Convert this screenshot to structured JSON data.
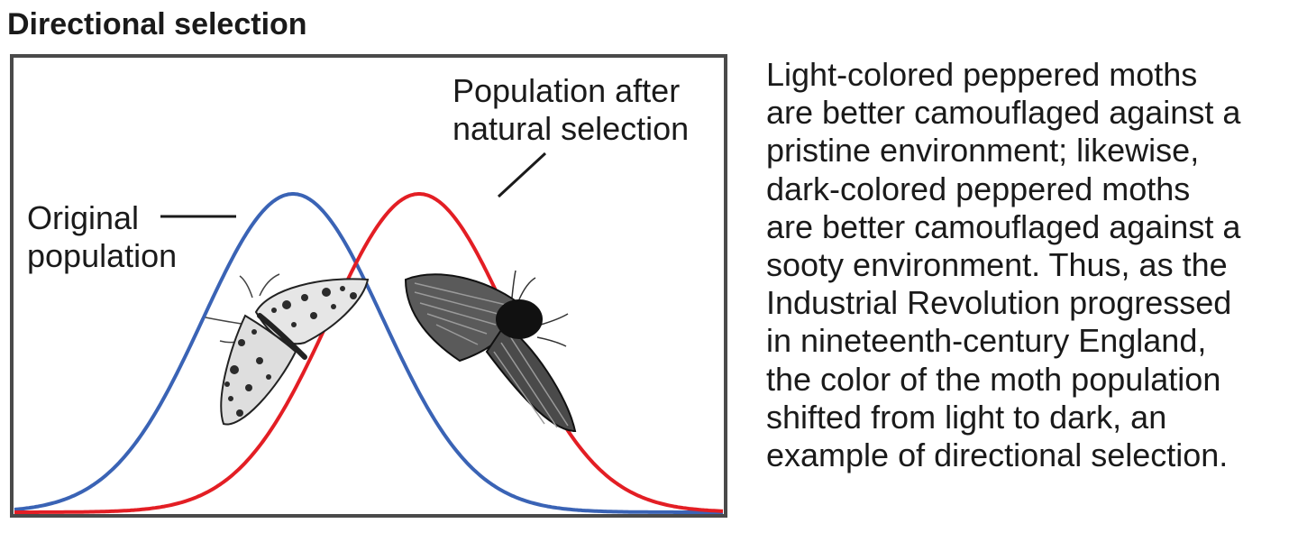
{
  "title": "Directional selection",
  "chart_data": {
    "type": "line",
    "series": [
      {
        "name": "Original population",
        "color": "#3a63b5",
        "mean": 0.0,
        "sd": 1.0
      },
      {
        "name": "Population after natural selection",
        "color": "#e31e24",
        "mean": 1.4,
        "sd": 1.0
      }
    ],
    "grid": false,
    "axes_ticks": false
  },
  "labels": {
    "original": [
      "Original",
      "population"
    ],
    "after": [
      "Population after",
      "natural selection"
    ]
  },
  "moths": {
    "light": "light-colored peppered moth",
    "dark": "dark-colored peppered moth"
  },
  "caption": [
    "Light-colored peppered moths",
    "are better camouflaged against a",
    "pristine environment; likewise,",
    "dark-colored peppered moths",
    "are better camouflaged against a",
    "sooty environment. Thus, as the",
    "Industrial Revolution progressed",
    "in nineteenth-century England,",
    "the color of the moth population",
    "shifted from light to dark, an",
    "example of directional selection."
  ]
}
